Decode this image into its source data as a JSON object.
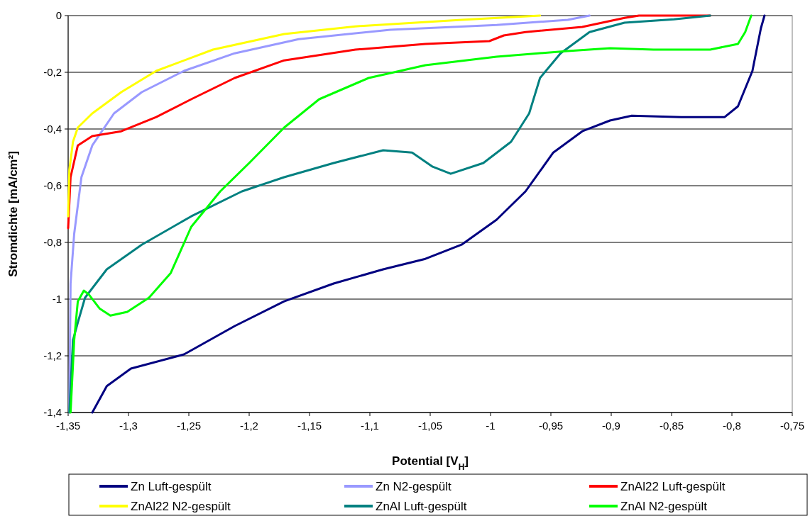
{
  "chart_data": {
    "type": "line",
    "xlabel": "Potential [V$_{H}$]",
    "ylabel": "Stromdichte [mA/cm²]",
    "xlim": [
      -1.35,
      -0.75
    ],
    "ylim": [
      -1.4,
      0
    ],
    "xticks": [
      {
        "value": -1.35,
        "label": "-1,35"
      },
      {
        "value": -1.3,
        "label": "-1,3"
      },
      {
        "value": -1.25,
        "label": "-1,25"
      },
      {
        "value": -1.2,
        "label": "-1,2"
      },
      {
        "value": -1.15,
        "label": "-1,15"
      },
      {
        "value": -1.1,
        "label": "-1,1"
      },
      {
        "value": -1.05,
        "label": "-1,05"
      },
      {
        "value": -1,
        "label": "-1"
      },
      {
        "value": -0.95,
        "label": "-0,95"
      },
      {
        "value": -0.9,
        "label": "-0,9"
      },
      {
        "value": -0.85,
        "label": "-0,85"
      },
      {
        "value": -0.8,
        "label": "-0,8"
      },
      {
        "value": -0.75,
        "label": "-0,75"
      }
    ],
    "yticks": [
      {
        "value": -1.4,
        "label": "-1,4"
      },
      {
        "value": -1.2,
        "label": "-1,2"
      },
      {
        "value": -1,
        "label": "-1"
      },
      {
        "value": -0.8,
        "label": "-0,8"
      },
      {
        "value": -0.6,
        "label": "-0,6"
      },
      {
        "value": -0.4,
        "label": "-0,4"
      },
      {
        "value": -0.2,
        "label": "-0,2"
      },
      0
    ],
    "grid": "y",
    "legend": "bottom",
    "marker": "none",
    "line_style": "solid",
    "series": [
      {
        "name": "Zn Luft-gespült",
        "color": "#000080",
        "x": [
          -1.33,
          -1.318,
          -1.298,
          -1.254,
          -1.212,
          -1.171,
          -1.13,
          -1.089,
          -1.054,
          -1.024,
          -0.995,
          -0.971,
          -0.948,
          -0.924,
          -0.901,
          -0.883,
          -0.842,
          -0.806,
          -0.795,
          -0.783,
          -0.776,
          -0.773
        ],
        "values": [
          -1.4,
          -1.307,
          -1.245,
          -1.195,
          -1.095,
          -1.008,
          -0.945,
          -0.895,
          -0.858,
          -0.808,
          -0.72,
          -0.62,
          -0.483,
          -0.408,
          -0.37,
          -0.353,
          -0.358,
          -0.358,
          -0.32,
          -0.195,
          -0.045,
          0
        ]
      },
      {
        "name": "Zn N2-gespült",
        "color": "#9999ff",
        "x": [
          -1.349,
          -1.348,
          -1.345,
          -1.339,
          -1.33,
          -1.312,
          -1.289,
          -1.254,
          -1.212,
          -1.159,
          -1.083,
          -0.995,
          -0.936,
          -0.918
        ],
        "values": [
          -1.4,
          -0.945,
          -0.77,
          -0.57,
          -0.458,
          -0.345,
          -0.27,
          -0.195,
          -0.133,
          -0.083,
          -0.05,
          -0.033,
          -0.015,
          0
        ]
      },
      {
        "name": "ZnAl22 Luft-gespült",
        "color": "#ff0000",
        "x": [
          -1.35,
          -1.348,
          -1.342,
          -1.33,
          -1.306,
          -1.277,
          -1.248,
          -1.212,
          -1.171,
          -1.112,
          -1.054,
          -1.001,
          -0.989,
          -0.971,
          -0.924,
          -0.889,
          -0.877,
          -0.818
        ],
        "values": [
          -0.75,
          -0.57,
          -0.458,
          -0.425,
          -0.408,
          -0.358,
          -0.295,
          -0.22,
          -0.158,
          -0.12,
          -0.1,
          -0.09,
          -0.07,
          -0.058,
          -0.04,
          -0.008,
          0,
          0
        ]
      },
      {
        "name": "ZnAl22 N2-gespült",
        "color": "#ffff00",
        "x": [
          -1.35,
          -1.349,
          -1.346,
          -1.342,
          -1.33,
          -1.306,
          -1.277,
          -1.23,
          -1.171,
          -1.112,
          -1.024,
          -0.959
        ],
        "values": [
          -0.708,
          -0.545,
          -0.445,
          -0.395,
          -0.345,
          -0.27,
          -0.195,
          -0.12,
          -0.065,
          -0.038,
          -0.015,
          0
        ]
      },
      {
        "name": "ZnAl Luft-gespült",
        "color": "#008080",
        "x": [
          -1.349,
          -1.346,
          -1.342,
          -1.336,
          -1.318,
          -1.289,
          -1.248,
          -1.206,
          -1.171,
          -1.13,
          -1.089,
          -1.065,
          -1.048,
          -1.033,
          -1.006,
          -0.983,
          -0.968,
          -0.959,
          -0.942,
          -0.918,
          -0.889,
          -0.848,
          -0.818
        ],
        "values": [
          -1.4,
          -1.145,
          -1.083,
          -0.995,
          -0.895,
          -0.808,
          -0.708,
          -0.62,
          -0.57,
          -0.52,
          -0.475,
          -0.483,
          -0.533,
          -0.558,
          -0.52,
          -0.445,
          -0.345,
          -0.22,
          -0.133,
          -0.058,
          -0.025,
          -0.013,
          0
        ]
      },
      {
        "name": "ZnAl N2-gespült",
        "color": "#00ff00",
        "x": [
          -1.348,
          -1.345,
          -1.342,
          -1.337,
          -1.333,
          -1.324,
          -1.315,
          -1.301,
          -1.283,
          -1.265,
          -1.248,
          -1.224,
          -1.2,
          -1.171,
          -1.142,
          -1.101,
          -1.054,
          -0.995,
          -0.936,
          -0.901,
          -0.865,
          -0.818,
          -0.795,
          -0.789,
          -0.784
        ],
        "values": [
          -1.4,
          -1.145,
          -1.008,
          -0.97,
          -0.983,
          -1.033,
          -1.058,
          -1.045,
          -0.995,
          -0.908,
          -0.745,
          -0.62,
          -0.52,
          -0.395,
          -0.295,
          -0.22,
          -0.175,
          -0.145,
          -0.125,
          -0.115,
          -0.12,
          -0.12,
          -0.1,
          -0.058,
          0
        ]
      }
    ]
  }
}
